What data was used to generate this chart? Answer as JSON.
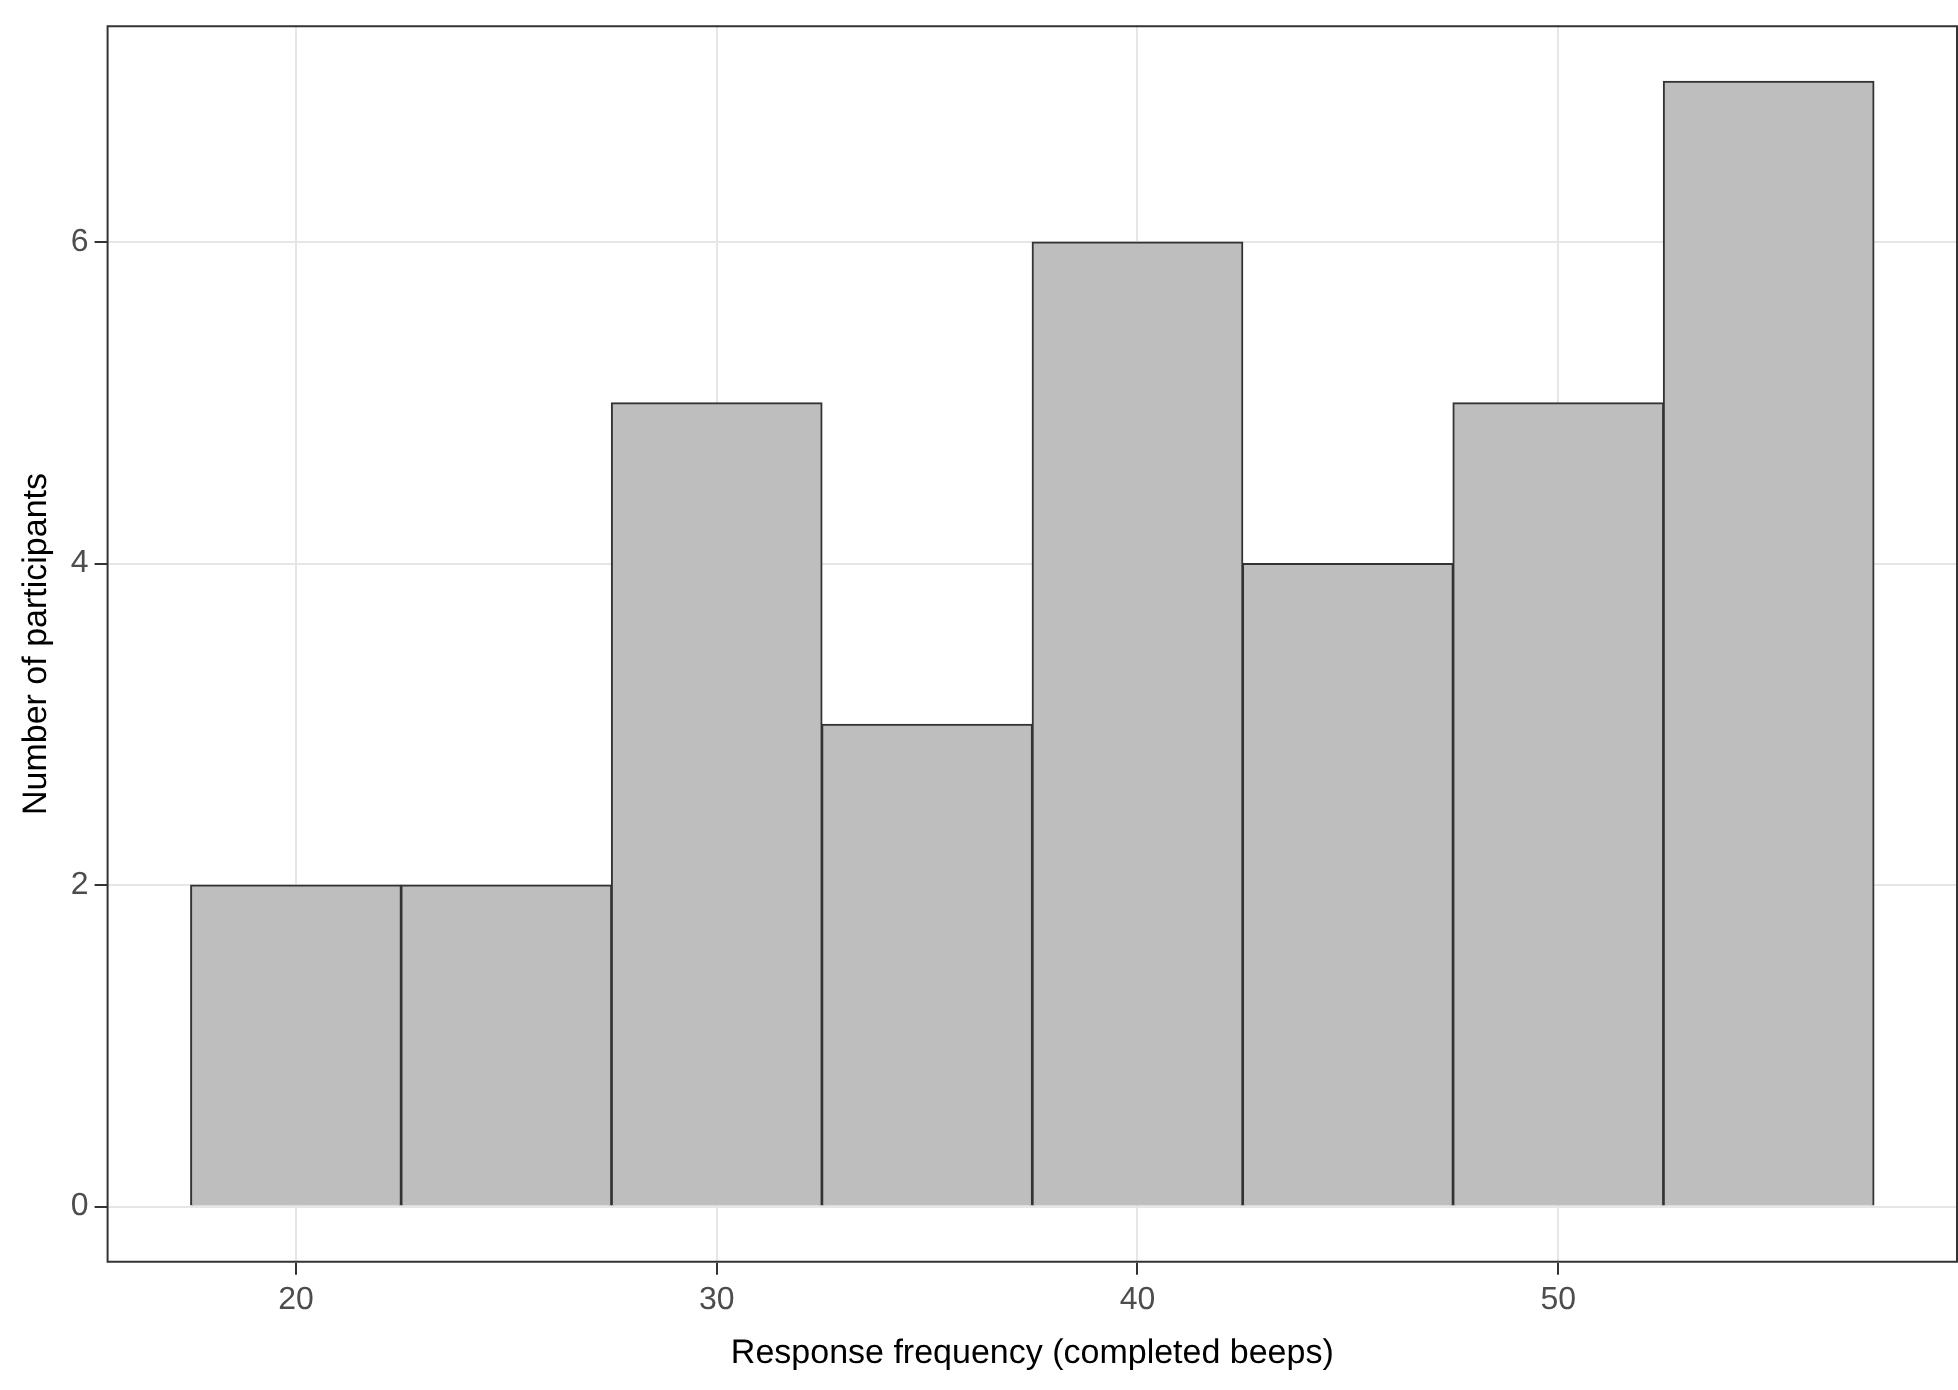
{
  "chart_data": {
    "type": "histogram",
    "xlabel": "Response frequency (completed beeps)",
    "ylabel": "Number of participants",
    "bins": [
      17.5,
      22.5,
      27.5,
      32.5,
      37.5,
      42.5,
      47.5,
      52.5,
      57.5
    ],
    "values": [
      2,
      2,
      5,
      3,
      6,
      4,
      5,
      7
    ],
    "color": "#bebebe",
    "xlim": [
      15.5,
      59.5
    ],
    "xticks": [
      20,
      30,
      40,
      50
    ],
    "ylim": [
      -0.35,
      7.35
    ],
    "yticks": [
      0,
      2,
      4,
      6
    ],
    "grid": true
  }
}
